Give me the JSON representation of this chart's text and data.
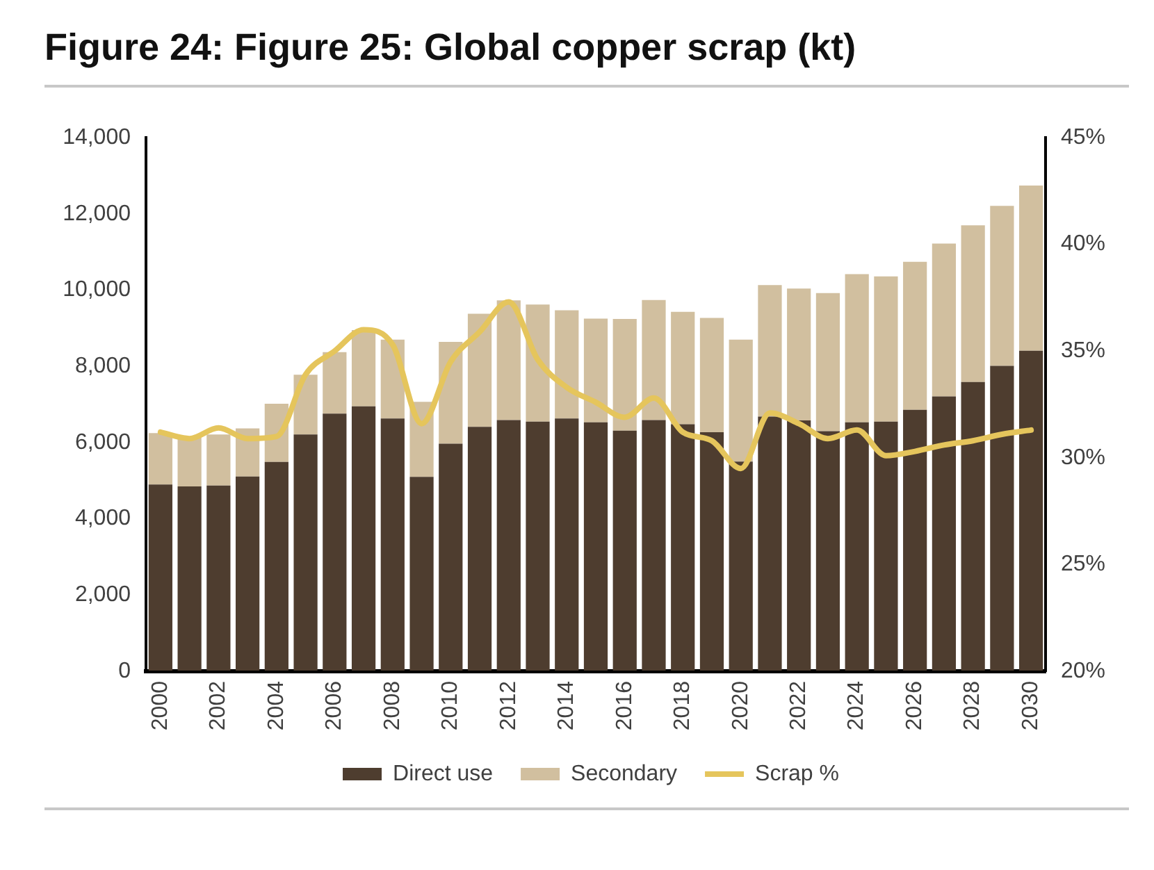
{
  "chart_data": {
    "type": "bar",
    "title": "Figure 24: Figure 25: Global copper scrap (kt)",
    "categories": [
      "2000",
      null,
      "2002",
      null,
      "2004",
      null,
      "2006",
      null,
      "2008",
      null,
      "2010",
      null,
      "2012",
      null,
      "2014",
      null,
      "2016",
      null,
      "2018",
      null,
      "2020",
      null,
      "2022",
      null,
      "2024",
      null,
      "2026",
      null,
      "2028",
      null,
      "2030"
    ],
    "stacked": true,
    "series": [
      {
        "name": "Direct use",
        "color": "#4e3d2f",
        "values": [
          4900,
          4850,
          4870,
          5110,
          5490,
          6210,
          6760,
          6950,
          6630,
          5100,
          5970,
          6410,
          6590,
          6550,
          6630,
          6530,
          6310,
          6590,
          6480,
          6270,
          5500,
          6680,
          6580,
          6300,
          6530,
          6550,
          6860,
          7210,
          7590,
          8010,
          8410
        ]
      },
      {
        "name": "Secondary",
        "color": "#d1bf9f",
        "values": [
          1350,
          1280,
          1340,
          1260,
          1530,
          1570,
          1610,
          2000,
          2070,
          1970,
          2670,
          2970,
          3140,
          3070,
          2840,
          2720,
          2930,
          3150,
          2950,
          3000,
          3200,
          3450,
          3460,
          3620,
          3890,
          3810,
          3880,
          4010,
          4110,
          4200,
          4330
        ]
      },
      {
        "name": "Scrap %",
        "type": "line",
        "axis": "y2",
        "color": "#e5c55c",
        "values": [
          31.2,
          30.9,
          31.4,
          30.9,
          31.0,
          33.9,
          35.0,
          36.0,
          35.3,
          31.6,
          34.5,
          35.9,
          37.3,
          34.6,
          33.3,
          32.6,
          31.9,
          32.8,
          31.2,
          30.8,
          29.5,
          32.1,
          31.6,
          30.9,
          31.3,
          30.1,
          30.3,
          30.6,
          30.8,
          31.1,
          31.3
        ]
      }
    ],
    "ylim": [
      0,
      14000
    ],
    "yticks": [
      0,
      {
        "value": 2000,
        "label": "2,000"
      },
      {
        "value": 4000,
        "label": "4,000"
      },
      {
        "value": 6000,
        "label": "6,000"
      },
      {
        "value": 8000,
        "label": "8,000"
      },
      {
        "value": 10000,
        "label": "10,000"
      },
      {
        "value": 12000,
        "label": "12,000"
      },
      {
        "value": 14000,
        "label": "14,000"
      }
    ],
    "y2lim": [
      20,
      45
    ],
    "y2ticks": [
      {
        "value": 20,
        "label": "20%"
      },
      {
        "value": 25,
        "label": "25%"
      },
      {
        "value": 30,
        "label": "30%"
      },
      {
        "value": 35,
        "label": "35%"
      },
      {
        "value": 40,
        "label": "40%"
      },
      {
        "value": 45,
        "label": "45%"
      }
    ],
    "grid": false,
    "legend": "bottom",
    "marker": "none",
    "line_style": "solid"
  }
}
